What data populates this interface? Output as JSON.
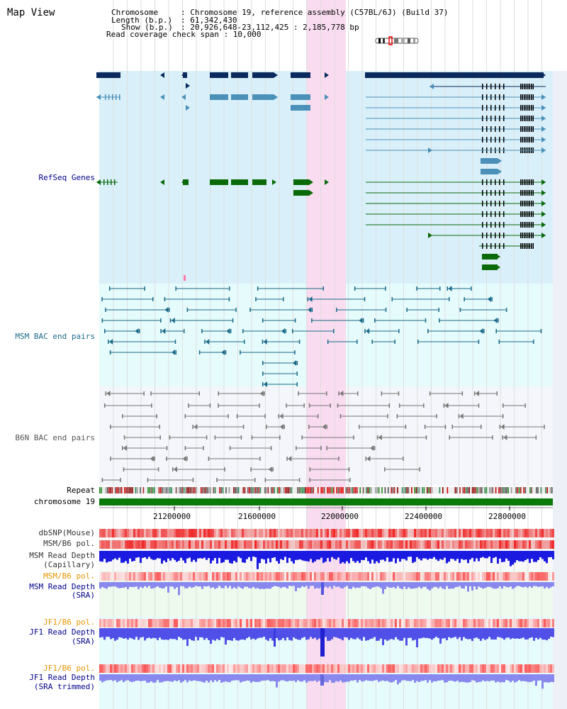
{
  "title": "Map View",
  "info": {
    "chromosome_key": "Chromosome",
    "chromosome_val": ": Chromosome 19, reference assembly (C57BL/6J) (Build 37)",
    "length_key": "Length (b.p.)",
    "length_val": ": 61,342,430",
    "show_key": "Show (b.p.)",
    "show_val": ": 20,926,648-23,112,425 : 2,185,778 bp",
    "coverage": "Read coverage check span : 10,000"
  },
  "tracks": {
    "refseq": "RefSeq Genes",
    "msm_bac": "MSM BAC end pairs",
    "b6n_bac": "B6N BAC end pairs",
    "repeat": "Repeat",
    "chromosome": "chromosome 19",
    "dbsnp": "dbSNP(Mouse)",
    "msm_b6_pol": "MSM/B6 pol.",
    "msm_depth_cap_1": "MSM Read Depth",
    "msm_depth_cap_2": "(Capillary)",
    "msm_b6_pol_2": "MSM/B6 pol.",
    "msm_depth_sra_1": "MSM Read Depth",
    "msm_depth_sra_2": "(SRA)",
    "jf1_b6_pol": "JF1/B6 pol.",
    "jf1_depth_sra_1": "JF1 Read Depth",
    "jf1_depth_sra_2": "(SRA)",
    "jf1_b6_pol_2": "JF1/B6 pol.",
    "jf1_depth_trim_1": "JF1 Read Depth",
    "jf1_depth_trim_2": "(SRA trimmed)"
  },
  "axis_ticks": [
    "21200000",
    "21600000",
    "22000000",
    "22400000",
    "22800000"
  ],
  "colors": {
    "refseq_bg": "#d9f0fa",
    "msm_bg": "#e6fbfb",
    "b6n_bg": "#f4f6fb",
    "highlight": "#fadcf0",
    "gene_dark": "#0a2a5e",
    "gene_light": "#4a90b8",
    "gene_green": "#0a6a0a",
    "bac_msm": "#1a6a8a",
    "bac_b6n": "#777777",
    "label_blue": "#00008b",
    "label_orange": "#e69500",
    "label_gray": "#333333"
  }
}
